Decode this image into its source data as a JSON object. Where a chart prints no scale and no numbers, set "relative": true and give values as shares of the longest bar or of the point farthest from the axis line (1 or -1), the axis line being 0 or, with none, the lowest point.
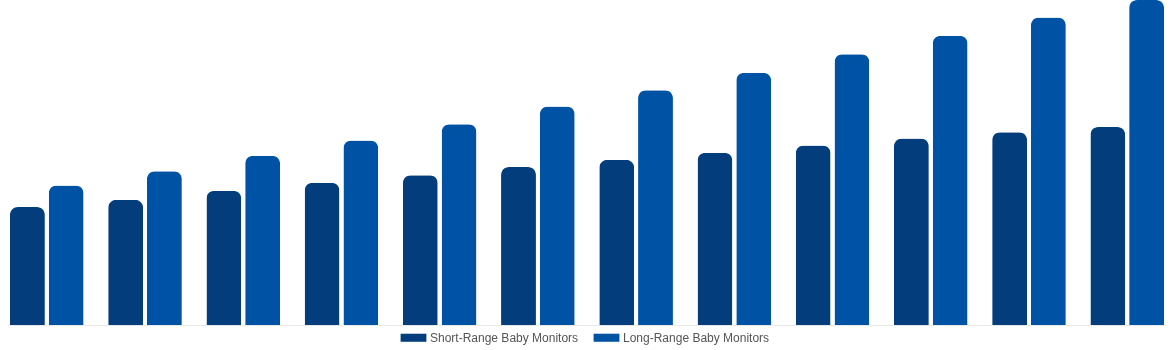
{
  "chart_data": {
    "type": "bar",
    "relative": true,
    "legend": "bottom",
    "categories": [
      null,
      null,
      null,
      null,
      null,
      null,
      null,
      null,
      null,
      null,
      null,
      null
    ],
    "series": [
      {
        "name": "Short-Range Baby Monitors",
        "color": "#033d7c",
        "values": [
          0.363,
          0.385,
          0.413,
          0.438,
          0.461,
          0.486,
          0.508,
          0.53,
          0.552,
          0.574,
          0.593,
          0.609
        ]
      },
      {
        "name": "Long-Range Baby Monitors",
        "color": "#0052a5",
        "values": [
          0.429,
          0.473,
          0.521,
          0.568,
          0.618,
          0.672,
          0.722,
          0.776,
          0.833,
          0.89,
          0.946,
          1
        ]
      }
    ]
  }
}
